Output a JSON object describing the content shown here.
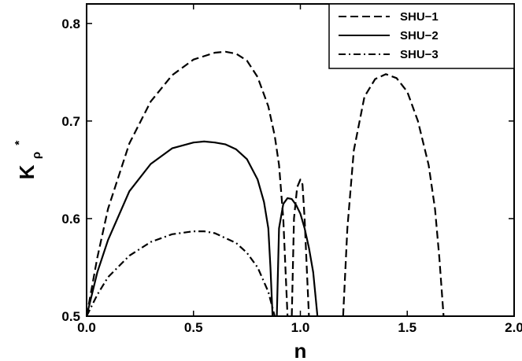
{
  "chart_data": {
    "type": "line",
    "xlabel": "n",
    "ylabel": {
      "main": "K",
      "sub": "ρ",
      "sup": "*"
    },
    "xlim": [
      0.0,
      2.0
    ],
    "ylim": [
      0.5,
      0.82
    ],
    "xticks": [
      {
        "value": 0.0,
        "label": "0.0"
      },
      {
        "value": 0.5,
        "label": "0.5"
      },
      {
        "value": 1.0,
        "label": "1.0"
      },
      {
        "value": 1.5,
        "label": "1.5"
      },
      {
        "value": 2.0,
        "label": "2.0"
      }
    ],
    "yticks": [
      {
        "value": 0.5,
        "label": "0.5"
      },
      {
        "value": 0.6,
        "label": "0.6"
      },
      {
        "value": 0.7,
        "label": "0.7"
      },
      {
        "value": 0.8,
        "label": "0.8"
      }
    ],
    "grid": false,
    "legend_position": "top-right",
    "series": [
      {
        "name": "SHU−1",
        "style": "dashed",
        "color": "#000000",
        "segments": [
          [
            [
              0.0,
              0.5
            ],
            [
              0.05,
              0.56
            ],
            [
              0.1,
              0.61
            ],
            [
              0.2,
              0.677
            ],
            [
              0.3,
              0.72
            ],
            [
              0.4,
              0.747
            ],
            [
              0.5,
              0.763
            ],
            [
              0.6,
              0.77
            ],
            [
              0.65,
              0.771
            ],
            [
              0.7,
              0.769
            ],
            [
              0.75,
              0.762
            ],
            [
              0.8,
              0.745
            ],
            [
              0.85,
              0.715
            ],
            [
              0.88,
              0.685
            ],
            [
              0.9,
              0.655
            ],
            [
              0.92,
              0.6
            ],
            [
              0.93,
              0.55
            ],
            [
              0.94,
              0.5
            ]
          ],
          [
            [
              0.96,
              0.5
            ],
            [
              0.97,
              0.6
            ],
            [
              0.985,
              0.632
            ],
            [
              1.0,
              0.64
            ],
            [
              1.01,
              0.635
            ],
            [
              1.02,
              0.6
            ],
            [
              1.03,
              0.55
            ],
            [
              1.04,
              0.5
            ]
          ],
          [
            [
              1.2,
              0.5
            ],
            [
              1.22,
              0.59
            ],
            [
              1.25,
              0.67
            ],
            [
              1.3,
              0.725
            ],
            [
              1.35,
              0.743
            ],
            [
              1.4,
              0.748
            ],
            [
              1.45,
              0.744
            ],
            [
              1.5,
              0.73
            ],
            [
              1.55,
              0.7
            ],
            [
              1.6,
              0.655
            ],
            [
              1.63,
              0.61
            ],
            [
              1.65,
              0.56
            ],
            [
              1.67,
              0.5
            ]
          ]
        ]
      },
      {
        "name": "SHU−2",
        "style": "solid",
        "color": "#000000",
        "segments": [
          [
            [
              0.0,
              0.5
            ],
            [
              0.05,
              0.545
            ],
            [
              0.1,
              0.578
            ],
            [
              0.2,
              0.628
            ],
            [
              0.3,
              0.656
            ],
            [
              0.4,
              0.672
            ],
            [
              0.5,
              0.678
            ],
            [
              0.55,
              0.679
            ],
            [
              0.6,
              0.678
            ],
            [
              0.65,
              0.676
            ],
            [
              0.7,
              0.671
            ],
            [
              0.75,
              0.661
            ],
            [
              0.8,
              0.64
            ],
            [
              0.83,
              0.617
            ],
            [
              0.85,
              0.59
            ],
            [
              0.86,
              0.55
            ],
            [
              0.87,
              0.5
            ]
          ],
          [
            [
              0.89,
              0.5
            ],
            [
              0.9,
              0.59
            ],
            [
              0.92,
              0.615
            ],
            [
              0.94,
              0.621
            ],
            [
              0.96,
              0.62
            ],
            [
              0.98,
              0.614
            ],
            [
              1.0,
              0.605
            ],
            [
              1.02,
              0.59
            ],
            [
              1.04,
              0.57
            ],
            [
              1.06,
              0.545
            ],
            [
              1.08,
              0.5
            ]
          ]
        ]
      },
      {
        "name": "SHU−3",
        "style": "dashdot",
        "color": "#000000",
        "segments": [
          [
            [
              0.0,
              0.5
            ],
            [
              0.05,
              0.522
            ],
            [
              0.1,
              0.54
            ],
            [
              0.2,
              0.562
            ],
            [
              0.3,
              0.576
            ],
            [
              0.4,
              0.584
            ],
            [
              0.5,
              0.587
            ],
            [
              0.55,
              0.587
            ],
            [
              0.6,
              0.585
            ],
            [
              0.7,
              0.575
            ],
            [
              0.75,
              0.565
            ],
            [
              0.8,
              0.55
            ],
            [
              0.85,
              0.525
            ],
            [
              0.88,
              0.5
            ]
          ]
        ]
      }
    ]
  }
}
